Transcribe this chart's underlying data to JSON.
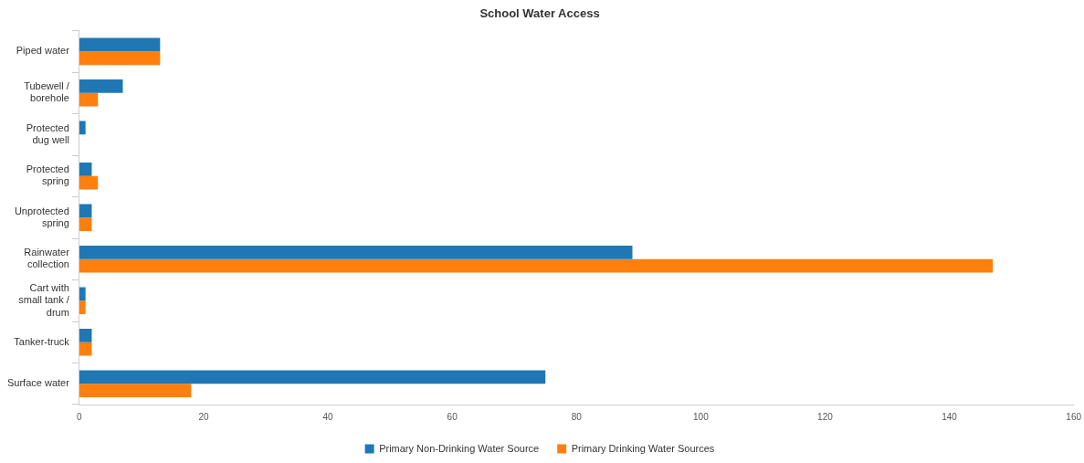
{
  "chart_data": {
    "type": "bar",
    "orientation": "horizontal",
    "title": "School Water Access",
    "categories": [
      "Piped water",
      "Tubewell / borehole",
      "Protected dug well",
      "Protected spring",
      "Unprotected spring",
      "Rainwater collection",
      "Cart with small tank / drum",
      "Tanker-truck",
      "Surface water"
    ],
    "series": [
      {
        "name": "Primary Non-Drinking Water Source",
        "color": "#1f77b4",
        "values": [
          13,
          7,
          1,
          2,
          2,
          89,
          1,
          2,
          75
        ]
      },
      {
        "name": "Primary Drinking Water Sources",
        "color": "#ff7f0e",
        "values": [
          13,
          3,
          0,
          3,
          2,
          147,
          1,
          2,
          18
        ]
      }
    ],
    "xlim": [
      0,
      160
    ],
    "xticks": [
      0,
      20,
      40,
      60,
      80,
      100,
      120,
      140,
      160
    ],
    "grid": false,
    "legend": "bottom"
  }
}
